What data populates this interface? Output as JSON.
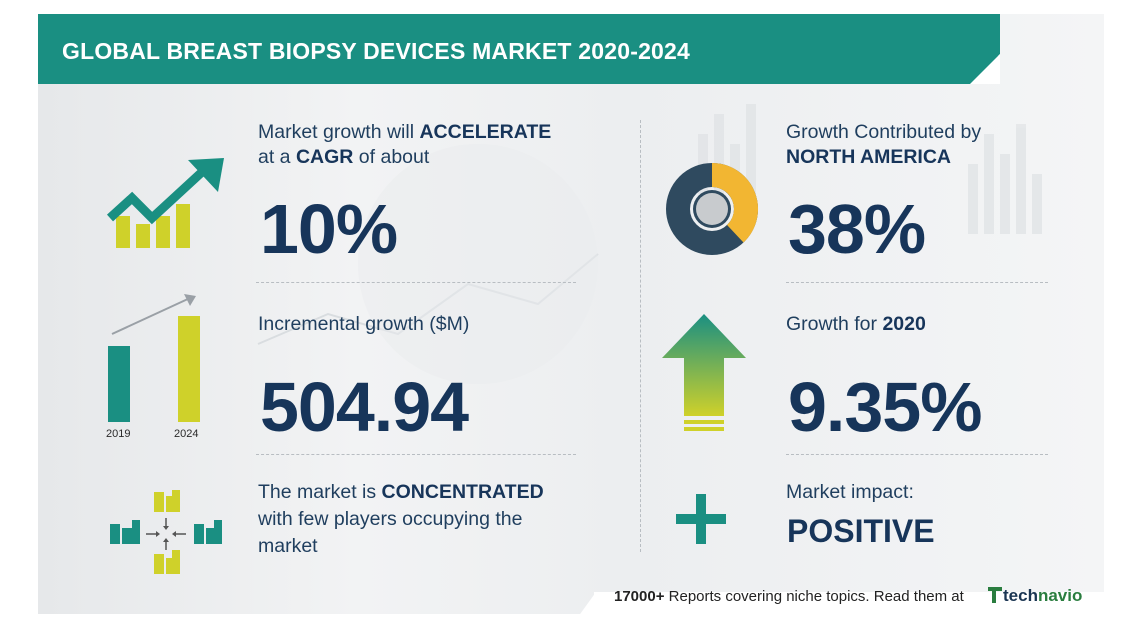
{
  "header": {
    "title": "GLOBAL BREAST BIOPSY DEVICES MARKET 2020-2024"
  },
  "growth": {
    "line1_prefix": "Market growth will ",
    "line1_bold": "ACCELERATE",
    "line2_prefix": "at a ",
    "line2_bold": "CAGR",
    "line2_suffix": "  of about",
    "value": "10%"
  },
  "incremental": {
    "label": "Incremental growth ($M)",
    "value": "504.94",
    "year_start": "2019",
    "year_end": "2024"
  },
  "concentration": {
    "line1_prefix": "The market is ",
    "line1_bold": "CONCENTRATED",
    "line2": "with few players occupying the",
    "line3": "market"
  },
  "region": {
    "line1": "Growth Contributed by",
    "line2_bold": "NORTH AMERICA",
    "value": "38%",
    "share": 0.38
  },
  "yoy": {
    "label_prefix": "Growth for  ",
    "label_bold": "2020",
    "value": "9.35%"
  },
  "impact": {
    "label": "Market impact:",
    "value": "POSITIVE"
  },
  "footer": {
    "count": "17000+",
    "text": " Reports covering niche topics. Read them at",
    "brand_a": "tech",
    "brand_b": "navio"
  },
  "colors": {
    "teal": "#1a8f82",
    "yellow": "#cfd12a",
    "navy": "#17355a",
    "gold": "#f2b632",
    "donut_dark": "#2f4a5f"
  }
}
